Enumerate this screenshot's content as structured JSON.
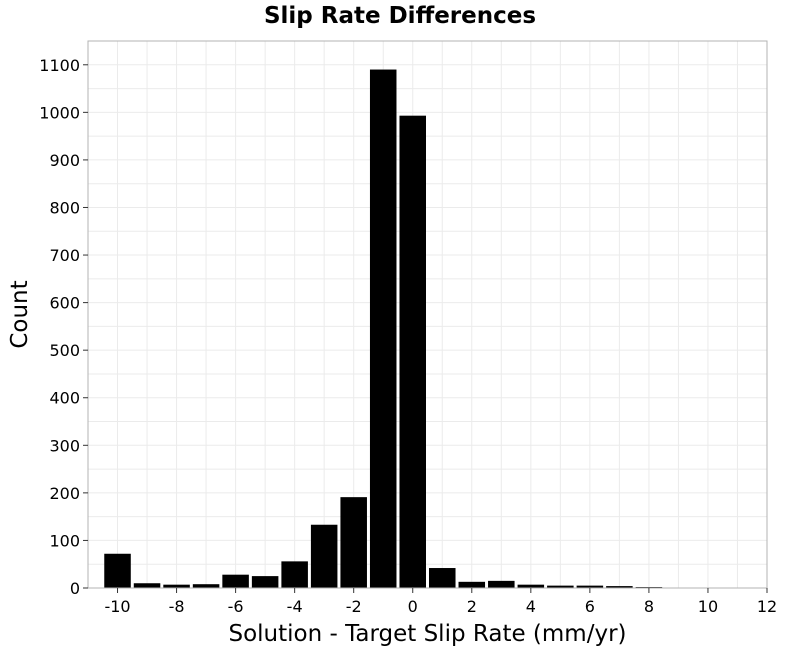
{
  "chart_data": {
    "type": "bar",
    "title": "Slip Rate Differences",
    "xlabel": "Solution - Target Slip Rate (mm/yr)",
    "ylabel": "Count",
    "bin_width": 1,
    "x": [
      -10,
      -9,
      -8,
      -7,
      -6,
      -5,
      -4,
      -3,
      -2,
      -1,
      0,
      1,
      2,
      3,
      4,
      5,
      6,
      7,
      8,
      9,
      10
    ],
    "values": [
      72,
      10,
      7,
      8,
      28,
      25,
      56,
      133,
      191,
      1090,
      993,
      42,
      13,
      15,
      7,
      5,
      5,
      4,
      2,
      1,
      1
    ],
    "xlim": [
      -11,
      12
    ],
    "ylim": [
      0,
      1150
    ],
    "xticks": [
      -10,
      -8,
      -6,
      -4,
      -2,
      0,
      2,
      4,
      6,
      8,
      10,
      12
    ],
    "xtick_labels": [
      "-10",
      "-8",
      "-6",
      "-4",
      "-2",
      "0",
      "2",
      "4",
      "6",
      "8",
      "10",
      "12"
    ],
    "yticks": [
      0,
      100,
      200,
      300,
      400,
      500,
      600,
      700,
      800,
      900,
      1000,
      1100
    ],
    "ytick_labels": [
      "0",
      "100",
      "200",
      "300",
      "400",
      "500",
      "600",
      "700",
      "800",
      "900",
      "1000",
      "1100"
    ],
    "grid": true,
    "colors": {
      "bar": "#000000",
      "grid": "#ebebeb",
      "frame": "#b3b3b3"
    }
  }
}
